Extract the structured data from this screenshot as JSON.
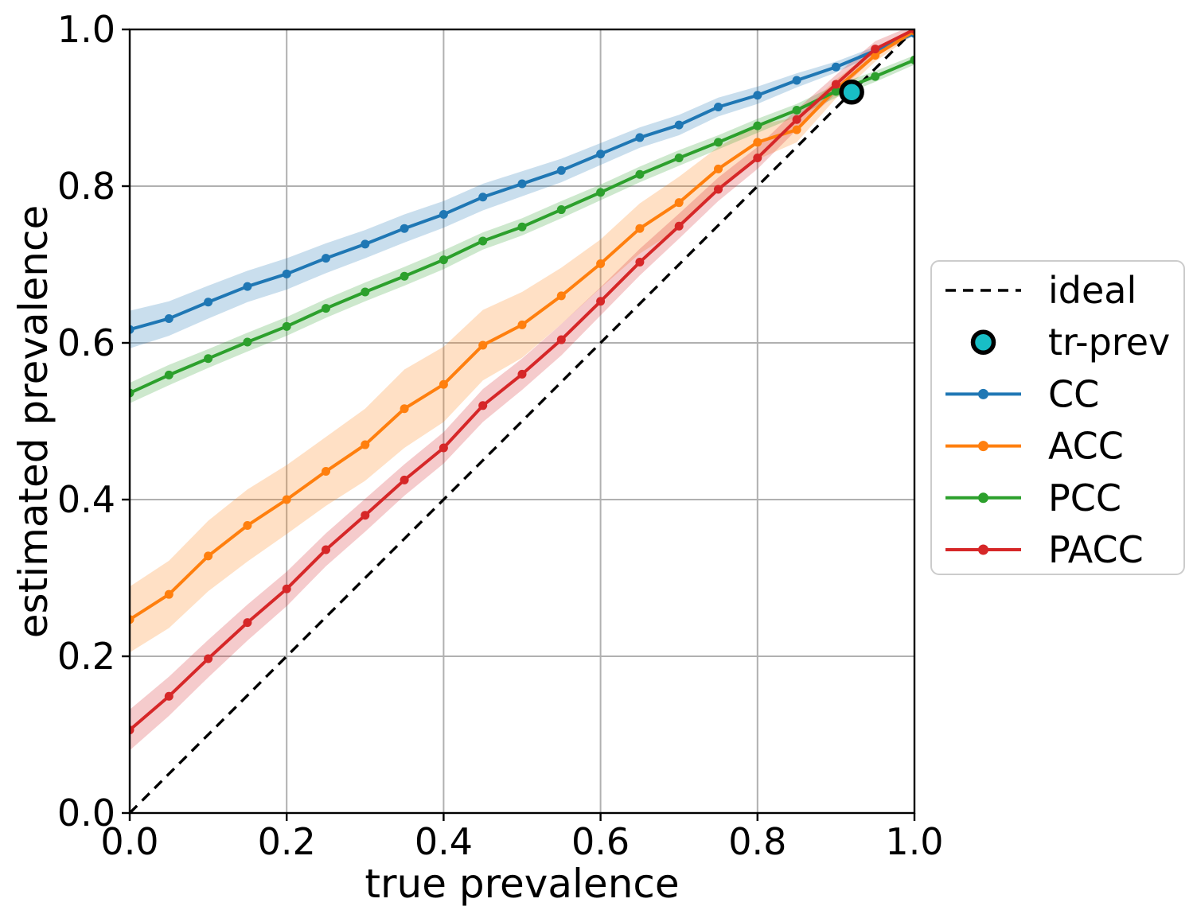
{
  "figure": {
    "background": "#ffffff"
  },
  "axes": {
    "xlabel": "true prevalence",
    "ylabel": "estimated prevalence",
    "xtick_labels": [
      "0.0",
      "0.2",
      "0.4",
      "0.6",
      "0.8",
      "1.0"
    ],
    "ytick_labels": [
      "0.0",
      "0.2",
      "0.4",
      "0.6",
      "0.8",
      "1.0"
    ],
    "xtick_values": [
      0.0,
      0.2,
      0.4,
      0.6,
      0.8,
      1.0
    ],
    "ytick_values": [
      0.0,
      0.2,
      0.4,
      0.6,
      0.8,
      1.0
    ],
    "grid_color": "#b0b0b0",
    "spine_color": "#000000",
    "tick_label_color": "#000000"
  },
  "legend": {
    "items": [
      {
        "id": "ideal",
        "label": "ideal",
        "swatch": "dashed",
        "color": "#000000"
      },
      {
        "id": "tr-prev",
        "label": "tr-prev",
        "swatch": "circle",
        "color": "#18bec6",
        "edge_color": "#000000"
      },
      {
        "id": "cc",
        "label": "CC",
        "swatch": "line",
        "color": "#1f77b4"
      },
      {
        "id": "acc",
        "label": "ACC",
        "swatch": "line",
        "color": "#ff7f0e"
      },
      {
        "id": "pcc",
        "label": "PCC",
        "swatch": "line",
        "color": "#2ca02c"
      },
      {
        "id": "pacc",
        "label": "PACC",
        "swatch": "line",
        "color": "#d62728"
      }
    ]
  },
  "chart_data": {
    "type": "line",
    "title": "",
    "xlabel": "true prevalence",
    "ylabel": "estimated prevalence",
    "xlim": [
      0.0,
      1.0
    ],
    "ylim": [
      0.0,
      1.0
    ],
    "grid": true,
    "legend_position": "right of axes, vertically centered",
    "x": [
      0.0,
      0.05,
      0.1,
      0.15,
      0.2,
      0.25,
      0.3,
      0.35,
      0.4,
      0.45,
      0.5,
      0.55,
      0.6,
      0.65,
      0.7,
      0.75,
      0.8,
      0.85,
      0.9,
      0.95,
      1.0
    ],
    "series": [
      {
        "name": "CC",
        "color": "#1f77b4",
        "values": [
          0.617,
          0.631,
          0.652,
          0.672,
          0.688,
          0.708,
          0.726,
          0.746,
          0.764,
          0.786,
          0.803,
          0.82,
          0.841,
          0.862,
          0.878,
          0.901,
          0.916,
          0.935,
          0.952,
          0.973,
          0.995
        ],
        "band_halfwidth": [
          0.024,
          0.022,
          0.021,
          0.02,
          0.02,
          0.019,
          0.018,
          0.018,
          0.017,
          0.017,
          0.016,
          0.015,
          0.014,
          0.013,
          0.013,
          0.012,
          0.011,
          0.009,
          0.007,
          0.005,
          0.003
        ]
      },
      {
        "name": "ACC",
        "color": "#ff7f0e",
        "values": [
          0.247,
          0.279,
          0.328,
          0.367,
          0.4,
          0.436,
          0.47,
          0.516,
          0.547,
          0.597,
          0.623,
          0.66,
          0.701,
          0.746,
          0.779,
          0.822,
          0.856,
          0.872,
          0.924,
          0.967,
          0.998
        ],
        "band_halfwidth": [
          0.042,
          0.043,
          0.045,
          0.046,
          0.044,
          0.044,
          0.046,
          0.05,
          0.048,
          0.045,
          0.042,
          0.036,
          0.031,
          0.032,
          0.033,
          0.028,
          0.022,
          0.016,
          0.012,
          0.008,
          0.004
        ]
      },
      {
        "name": "PCC",
        "color": "#2ca02c",
        "values": [
          0.536,
          0.559,
          0.58,
          0.601,
          0.621,
          0.644,
          0.665,
          0.685,
          0.706,
          0.73,
          0.748,
          0.77,
          0.792,
          0.815,
          0.836,
          0.856,
          0.877,
          0.897,
          0.921,
          0.94,
          0.961
        ],
        "band_halfwidth": [
          0.013,
          0.013,
          0.012,
          0.012,
          0.012,
          0.012,
          0.012,
          0.012,
          0.012,
          0.011,
          0.011,
          0.011,
          0.01,
          0.01,
          0.01,
          0.009,
          0.009,
          0.008,
          0.008,
          0.007,
          0.006
        ]
      },
      {
        "name": "PACC",
        "color": "#d62728",
        "values": [
          0.106,
          0.149,
          0.197,
          0.243,
          0.286,
          0.336,
          0.38,
          0.425,
          0.466,
          0.52,
          0.56,
          0.604,
          0.653,
          0.703,
          0.749,
          0.796,
          0.836,
          0.885,
          0.93,
          0.975,
          1.0
        ],
        "band_halfwidth": [
          0.026,
          0.025,
          0.024,
          0.023,
          0.022,
          0.021,
          0.021,
          0.02,
          0.02,
          0.021,
          0.02,
          0.02,
          0.018,
          0.017,
          0.016,
          0.015,
          0.014,
          0.013,
          0.012,
          0.01,
          0.006
        ]
      }
    ],
    "ideal_line": {
      "label": "ideal",
      "x": [
        0.0,
        1.0
      ],
      "y": [
        0.0,
        1.0
      ],
      "style": "dashed",
      "color": "#000000"
    },
    "tr_prev_marker": {
      "label": "tr-prev",
      "x": 0.92,
      "y": 0.92,
      "fill_color": "#18bec6",
      "edge_color": "#000000"
    },
    "band_opacity": 0.24
  }
}
